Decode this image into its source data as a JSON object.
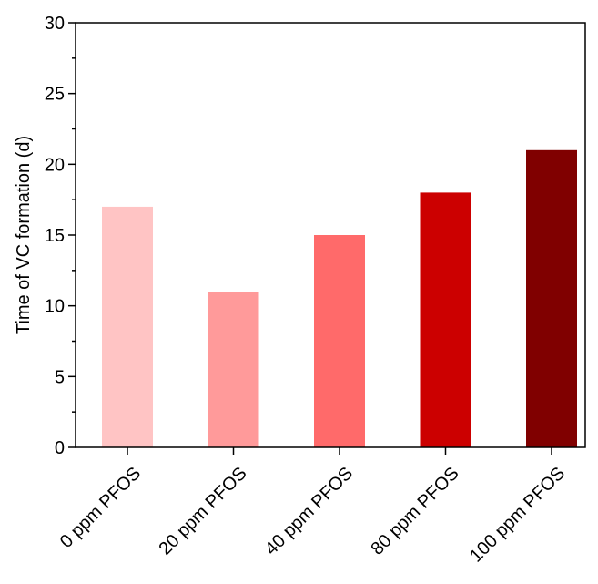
{
  "chart_data": {
    "type": "bar",
    "title": "",
    "xlabel": "",
    "ylabel": "Time of VC formation (d)",
    "categories": [
      "0 ppm PFOS",
      "20 ppm PFOS",
      "40 ppm PFOS",
      "80 ppm PFOS",
      "100 ppm PFOS"
    ],
    "values": [
      17,
      11,
      15,
      18,
      21
    ],
    "bar_colors": [
      "#ffc4c4",
      "#ff9a9a",
      "#ff6a6a",
      "#cc0000",
      "#800000"
    ],
    "ylim": [
      0,
      30
    ],
    "yticks": [
      0,
      5,
      10,
      15,
      20,
      25,
      30
    ],
    "ytick_labels": [
      "0",
      "5",
      "10",
      "15",
      "20",
      "25",
      "30"
    ],
    "grid": false,
    "legend": "none"
  }
}
